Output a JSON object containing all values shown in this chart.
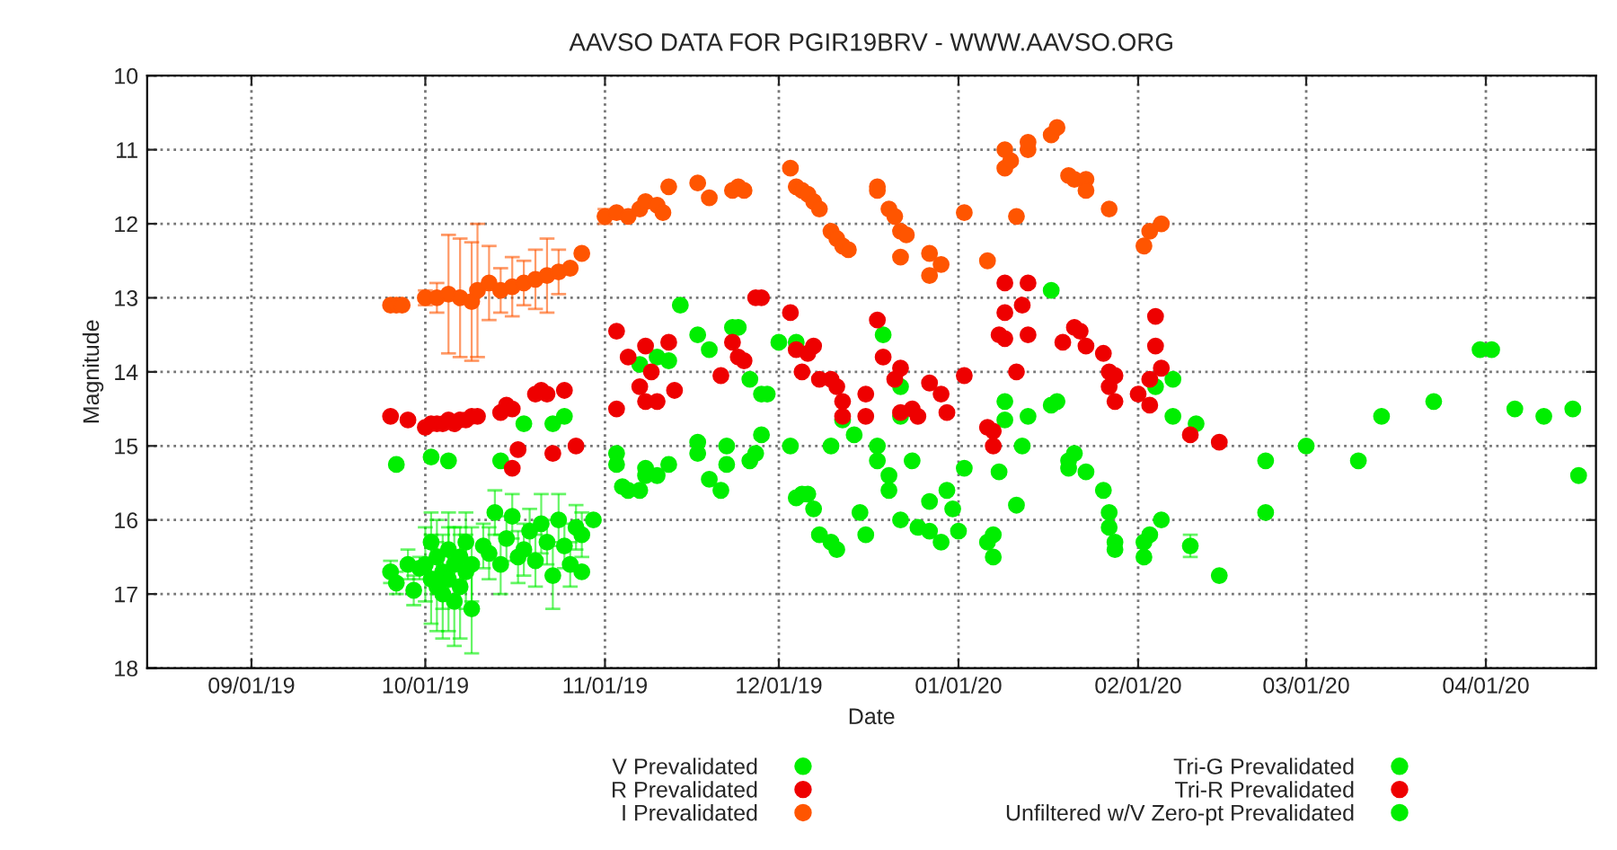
{
  "chart_data": {
    "type": "scatter",
    "title": "AAVSO DATA FOR PGIR19BRV - WWW.AAVSO.ORG",
    "xlabel": "Date",
    "ylabel": "Magnitude",
    "xlim": [
      "2019-08-14",
      "2020-04-20"
    ],
    "ylim": [
      18,
      10
    ],
    "xticks": [
      {
        "value": "2019-09-01",
        "label": "09/01/19"
      },
      {
        "value": "2019-10-01",
        "label": "10/01/19"
      },
      {
        "value": "2019-11-01",
        "label": "11/01/19"
      },
      {
        "value": "2019-12-01",
        "label": "12/01/19"
      },
      {
        "value": "2020-01-01",
        "label": "01/01/20"
      },
      {
        "value": "2020-02-01",
        "label": "02/01/20"
      },
      {
        "value": "2020-03-01",
        "label": "03/01/20"
      },
      {
        "value": "2020-04-01",
        "label": "04/01/20"
      }
    ],
    "yticks": [
      10,
      11,
      12,
      13,
      14,
      15,
      16,
      17,
      18
    ],
    "grid": true,
    "legend": "bottom",
    "marker": "circle",
    "series": [
      {
        "name": "V Prevalidated",
        "color": "#00ee00",
        "x": [
          "2019-09-25",
          "2019-09-26",
          "2019-09-26",
          "2019-09-28",
          "2019-09-29",
          "2019-09-30",
          "2019-10-01",
          "2019-10-02",
          "2019-10-02",
          "2019-10-02",
          "2019-10-03",
          "2019-10-03",
          "2019-10-04",
          "2019-10-04",
          "2019-10-05",
          "2019-10-05",
          "2019-10-05",
          "2019-10-06",
          "2019-10-06",
          "2019-10-07",
          "2019-10-07",
          "2019-10-08",
          "2019-10-08",
          "2019-10-09",
          "2019-10-09",
          "2019-10-11",
          "2019-10-12",
          "2019-10-13",
          "2019-10-14",
          "2019-10-14",
          "2019-10-15",
          "2019-10-16",
          "2019-10-17",
          "2019-10-18",
          "2019-10-18",
          "2019-10-19",
          "2019-10-20",
          "2019-10-21",
          "2019-10-22",
          "2019-10-23",
          "2019-10-23",
          "2019-10-24",
          "2019-10-25",
          "2019-10-25",
          "2019-10-26",
          "2019-10-27",
          "2019-10-28",
          "2019-10-28",
          "2019-10-30",
          "2019-11-03",
          "2019-11-03",
          "2019-11-04",
          "2019-11-05",
          "2019-11-07",
          "2019-11-07",
          "2019-11-08",
          "2019-11-08",
          "2019-11-10",
          "2019-11-10",
          "2019-11-12",
          "2019-11-12",
          "2019-11-14",
          "2019-11-17",
          "2019-11-17",
          "2019-11-17",
          "2019-11-19",
          "2019-11-19",
          "2019-11-21",
          "2019-11-22",
          "2019-11-22",
          "2019-11-23",
          "2019-11-24",
          "2019-11-26",
          "2019-11-26",
          "2019-11-27",
          "2019-11-28",
          "2019-11-28",
          "2019-11-29",
          "2019-12-01",
          "2019-12-03",
          "2019-12-04",
          "2019-12-04",
          "2019-12-05",
          "2019-12-06",
          "2019-12-07",
          "2019-12-08",
          "2019-12-10",
          "2019-12-10",
          "2019-12-11",
          "2019-12-12",
          "2019-12-14",
          "2019-12-15",
          "2019-12-16",
          "2019-12-18",
          "2019-12-18",
          "2019-12-19",
          "2019-12-20",
          "2019-12-20",
          "2019-12-22",
          "2019-12-22",
          "2019-12-22",
          "2019-12-24",
          "2019-12-25",
          "2019-12-27",
          "2019-12-27",
          "2019-12-29",
          "2019-12-30",
          "2019-12-31",
          "2020-01-01",
          "2020-01-02",
          "2020-01-06",
          "2020-01-07",
          "2020-01-07",
          "2020-01-08",
          "2020-01-09",
          "2020-01-09",
          "2020-01-11",
          "2020-01-12",
          "2020-01-13",
          "2020-01-17",
          "2020-01-18",
          "2020-01-17",
          "2020-01-20",
          "2020-01-20",
          "2020-01-21",
          "2020-01-23",
          "2020-01-26",
          "2020-01-27",
          "2020-01-27",
          "2020-01-28",
          "2020-01-28",
          "2020-02-02",
          "2020-02-02",
          "2020-02-03",
          "2020-02-05",
          "2020-02-04",
          "2020-02-07",
          "2020-02-07",
          "2020-02-11",
          "2020-02-10",
          "2020-02-15"
        ],
        "values": [
          16.7,
          16.85,
          15.25,
          16.6,
          16.95,
          16.65,
          16.6,
          16.8,
          16.3,
          15.15,
          16.5,
          16.9,
          16.7,
          17.0,
          16.4,
          16.8,
          15.2,
          17.1,
          16.6,
          16.9,
          16.5,
          16.7,
          16.3,
          17.2,
          16.6,
          16.35,
          16.45,
          15.9,
          16.6,
          15.2,
          16.25,
          15.95,
          16.5,
          16.4,
          14.7,
          16.15,
          16.55,
          16.05,
          16.3,
          16.75,
          14.7,
          16.0,
          16.35,
          14.6,
          16.6,
          16.1,
          16.2,
          16.7,
          16.0,
          15.1,
          15.25,
          15.55,
          15.6,
          15.6,
          13.9,
          15.3,
          15.4,
          15.4,
          13.8,
          13.85,
          15.25,
          13.1,
          13.5,
          14.95,
          15.1,
          15.45,
          13.7,
          15.6,
          15.0,
          15.25,
          13.4,
          13.4,
          15.2,
          14.1,
          15.1,
          14.85,
          14.3,
          14.3,
          13.6,
          15.0,
          13.6,
          15.7,
          15.65,
          15.65,
          15.85,
          16.2,
          15.0,
          16.3,
          16.4,
          14.65,
          14.85,
          15.9,
          16.2,
          15.0,
          15.2,
          13.5,
          15.4,
          15.6,
          16.0,
          14.2,
          14.6,
          15.2,
          16.1,
          15.75,
          16.15,
          16.3,
          15.6,
          15.85,
          16.15,
          15.3,
          16.3,
          16.2,
          16.5,
          15.35,
          14.4,
          14.65,
          15.8,
          15.0,
          14.6,
          14.45,
          14.4,
          12.9,
          15.2,
          15.3,
          15.1,
          15.35,
          15.6,
          15.9,
          16.1,
          16.3,
          16.4,
          16.5,
          16.3,
          16.2,
          16.0,
          14.2,
          14.1,
          14.6,
          14.7,
          16.35,
          16.75
        ],
        "errors": [
          0.15,
          0.15,
          null,
          0.2,
          0.2,
          0.15,
          0.5,
          0.6,
          0.4,
          null,
          0.5,
          0.6,
          0.5,
          0.6,
          0.5,
          0.7,
          null,
          0.6,
          0.5,
          0.7,
          0.4,
          0.5,
          0.4,
          0.6,
          0.5,
          0.3,
          0.35,
          0.3,
          0.4,
          null,
          0.3,
          0.3,
          0.35,
          0.35,
          null,
          0.3,
          0.35,
          0.4,
          0.3,
          0.45,
          null,
          0.35,
          0.3,
          null,
          0.3,
          0.3,
          0.3,
          null,
          null,
          null,
          null,
          null,
          null,
          null,
          null,
          null,
          null,
          null,
          null,
          null,
          null,
          null,
          null,
          null,
          null,
          null,
          null,
          null,
          null,
          null,
          null,
          null,
          null,
          null,
          null,
          null,
          null,
          null,
          null,
          null,
          null,
          null,
          null,
          null,
          null,
          null,
          null,
          null,
          null,
          null,
          null,
          null,
          null,
          null,
          null,
          null,
          null,
          null,
          null,
          null,
          null,
          null,
          null,
          null,
          null,
          null,
          null,
          null,
          null,
          null,
          null,
          null,
          null,
          null,
          null,
          null,
          null,
          null,
          null,
          null,
          null,
          null,
          null,
          null,
          null,
          null,
          null,
          null,
          null,
          null,
          null,
          null,
          null,
          null,
          null,
          null,
          null,
          null,
          null,
          0.15,
          null
        ]
      },
      {
        "name": "R Prevalidated",
        "color": "#ee0000",
        "x": [
          "2019-09-25",
          "2019-09-28",
          "2019-10-01",
          "2019-10-02",
          "2019-10-03",
          "2019-10-04",
          "2019-10-05",
          "2019-10-06",
          "2019-10-07",
          "2019-10-08",
          "2019-10-09",
          "2019-10-10",
          "2019-10-14",
          "2019-10-15",
          "2019-10-16",
          "2019-10-17",
          "2019-10-16",
          "2019-10-20",
          "2019-10-21",
          "2019-10-22",
          "2019-10-23",
          "2019-10-25",
          "2019-10-27",
          "2019-11-03",
          "2019-11-03",
          "2019-11-05",
          "2019-11-07",
          "2019-11-08",
          "2019-11-08",
          "2019-11-09",
          "2019-11-10",
          "2019-11-12",
          "2019-11-13",
          "2019-11-21",
          "2019-11-23",
          "2019-11-24",
          "2019-11-25",
          "2019-11-27",
          "2019-11-28",
          "2019-12-03",
          "2019-12-04",
          "2019-12-05",
          "2019-12-06",
          "2019-12-07",
          "2019-12-08",
          "2019-12-10",
          "2019-12-11",
          "2019-12-12",
          "2019-12-12",
          "2019-12-16",
          "2019-12-16",
          "2019-12-18",
          "2019-12-19",
          "2019-12-21",
          "2019-12-22",
          "2019-12-22",
          "2019-12-24",
          "2019-12-25",
          "2019-12-27",
          "2019-12-29",
          "2019-12-30",
          "2020-01-02",
          "2020-01-06",
          "2020-01-07",
          "2020-01-07",
          "2020-01-08",
          "2020-01-09",
          "2020-01-09",
          "2020-01-09",
          "2020-01-11",
          "2020-01-12",
          "2020-01-13",
          "2020-01-13",
          "2020-01-19",
          "2020-01-21",
          "2020-01-22",
          "2020-01-23",
          "2020-01-26",
          "2020-01-27",
          "2020-01-27",
          "2020-01-28",
          "2020-01-28",
          "2020-02-01",
          "2020-02-03",
          "2020-02-03",
          "2020-02-04",
          "2020-02-04",
          "2020-02-05"
        ],
        "values": [
          14.6,
          14.65,
          14.75,
          14.7,
          14.7,
          14.7,
          14.65,
          14.7,
          14.65,
          14.65,
          14.6,
          14.6,
          14.55,
          14.45,
          14.5,
          15.05,
          15.3,
          14.3,
          14.25,
          14.3,
          15.1,
          14.25,
          15.0,
          13.45,
          14.5,
          13.8,
          14.2,
          13.65,
          14.4,
          14.0,
          14.4,
          13.6,
          14.25,
          14.05,
          13.6,
          13.8,
          13.85,
          13.0,
          13.0,
          13.2,
          13.7,
          14.0,
          13.75,
          13.65,
          14.1,
          14.1,
          14.2,
          14.4,
          14.6,
          14.3,
          14.6,
          13.3,
          13.8,
          14.1,
          14.55,
          13.95,
          14.5,
          14.6,
          14.15,
          14.3,
          14.55,
          14.05,
          14.75,
          14.8,
          15.0,
          13.5,
          13.55,
          12.8,
          13.2,
          14.0,
          13.1,
          12.8,
          13.5,
          13.6,
          13.4,
          13.45,
          13.65,
          13.75,
          14.0,
          14.2,
          14.05,
          14.4,
          14.3,
          14.45,
          14.1,
          13.25,
          13.65,
          13.95
        ]
      },
      {
        "name": "I Prevalidated",
        "color": "#ff5500",
        "x": [
          "2019-09-25",
          "2019-09-26",
          "2019-09-27",
          "2019-10-01",
          "2019-10-03",
          "2019-10-05",
          "2019-10-07",
          "2019-10-09",
          "2019-10-10",
          "2019-10-12",
          "2019-10-14",
          "2019-10-16",
          "2019-10-18",
          "2019-10-20",
          "2019-10-22",
          "2019-10-24",
          "2019-10-26",
          "2019-10-28",
          "2019-11-01",
          "2019-11-03",
          "2019-11-05",
          "2019-11-07",
          "2019-11-08",
          "2019-11-10",
          "2019-11-11",
          "2019-11-12",
          "2019-11-17",
          "2019-11-19",
          "2019-11-23",
          "2019-11-24",
          "2019-11-25",
          "2019-12-03",
          "2019-12-04",
          "2019-12-05",
          "2019-12-06",
          "2019-12-07",
          "2019-12-08",
          "2019-12-10",
          "2019-12-11",
          "2019-12-12",
          "2019-12-13",
          "2019-12-18",
          "2019-12-18",
          "2019-12-20",
          "2019-12-21",
          "2019-12-22",
          "2019-12-23",
          "2019-12-22",
          "2019-12-27",
          "2019-12-27",
          "2019-12-29",
          "2020-01-02",
          "2020-01-06",
          "2020-01-09",
          "2020-01-09",
          "2020-01-10",
          "2020-01-11",
          "2020-01-13",
          "2020-01-13",
          "2020-01-17",
          "2020-01-18",
          "2020-01-20",
          "2020-01-21",
          "2020-01-23",
          "2020-01-23",
          "2020-01-27",
          "2020-02-02",
          "2020-02-03",
          "2020-02-05"
        ],
        "values": [
          13.1,
          13.1,
          13.1,
          13.0,
          13.0,
          12.95,
          13.0,
          13.05,
          12.9,
          12.8,
          12.9,
          12.85,
          12.8,
          12.75,
          12.7,
          12.65,
          12.6,
          12.4,
          11.9,
          11.85,
          11.9,
          11.8,
          11.7,
          11.75,
          11.85,
          11.5,
          11.45,
          11.65,
          11.55,
          11.5,
          11.55,
          11.25,
          11.5,
          11.55,
          11.6,
          11.7,
          11.8,
          12.1,
          12.2,
          12.3,
          12.35,
          11.5,
          11.55,
          11.8,
          11.9,
          12.1,
          12.15,
          12.45,
          12.4,
          12.7,
          12.55,
          11.85,
          12.5,
          11.0,
          11.25,
          11.15,
          11.9,
          11.0,
          10.9,
          10.8,
          10.7,
          11.35,
          11.4,
          11.4,
          11.55,
          11.8,
          12.3,
          12.1,
          12.0
        ],
        "errors": [
          null,
          null,
          null,
          0.1,
          0.2,
          0.8,
          0.8,
          0.8,
          0.9,
          0.5,
          0.3,
          0.4,
          0.3,
          0.4,
          0.5,
          0.3,
          null,
          null,
          0.1,
          null,
          null,
          null,
          null,
          null,
          null,
          null,
          null,
          null,
          null,
          null,
          null,
          null,
          null,
          null,
          null,
          null,
          null,
          null,
          null,
          null,
          null,
          null,
          null,
          null,
          null,
          null,
          null,
          null,
          null,
          null,
          null,
          null,
          null,
          null,
          null,
          null,
          null,
          null,
          null,
          null,
          null,
          null,
          null,
          null,
          null,
          null,
          null,
          null,
          null
        ]
      },
      {
        "name": "Tri-G Prevalidated",
        "color": "#00ee00",
        "x": [
          "2020-02-23",
          "2020-02-23",
          "2020-03-01",
          "2020-03-10",
          "2020-03-14"
        ],
        "values": [
          15.2,
          15.9,
          15.0,
          15.2,
          14.6
        ]
      },
      {
        "name": "Tri-R Prevalidated",
        "color": "#ee0000",
        "x": [
          "2020-02-10",
          "2020-02-15"
        ],
        "values": [
          14.85,
          14.95
        ]
      },
      {
        "name": "Unfiltered w/V Zero-pt Prevalidated",
        "color": "#00ee00",
        "x": [
          "2020-03-23",
          "2020-03-31",
          "2020-04-02",
          "2020-04-06",
          "2020-04-11",
          "2020-04-16",
          "2020-04-17"
        ],
        "values": [
          14.4,
          13.7,
          13.7,
          14.5,
          14.6,
          14.5,
          15.4
        ]
      }
    ]
  }
}
